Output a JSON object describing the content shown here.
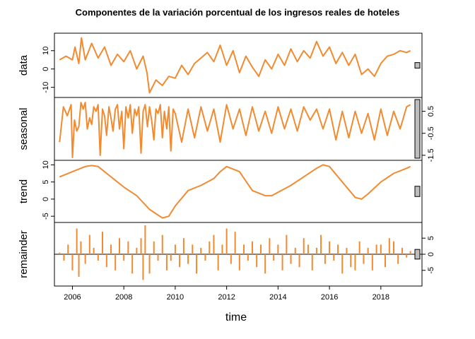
{
  "chart_data": {
    "type": "line",
    "title": "Componentes de la variación porcentual de los ingresos reales de hoteles",
    "xlabel": "time",
    "x_ticks": [
      2006,
      2008,
      2010,
      2012,
      2014,
      2016,
      2018
    ],
    "xlim": [
      2005.3,
      2019.6
    ],
    "grid": false,
    "line_color": "#F28A30",
    "panels": [
      {
        "name": "data",
        "label": "data",
        "ylim": [
          -14,
          18
        ],
        "y_ticks": [
          "-10",
          "0",
          "10"
        ],
        "y_tick_values": [
          -10,
          0,
          10
        ],
        "tick_side": "left",
        "kind": "line",
        "x": [
          2005.5,
          2005.75,
          2006.0,
          2006.1,
          2006.25,
          2006.35,
          2006.5,
          2006.75,
          2007.0,
          2007.25,
          2007.5,
          2007.75,
          2008.0,
          2008.25,
          2008.5,
          2008.75,
          2008.9,
          2009.0,
          2009.25,
          2009.5,
          2009.75,
          2010.0,
          2010.25,
          2010.5,
          2010.75,
          2011.0,
          2011.25,
          2011.5,
          2011.75,
          2012.0,
          2012.25,
          2012.5,
          2012.75,
          2013.0,
          2013.25,
          2013.5,
          2013.75,
          2014.0,
          2014.25,
          2014.5,
          2014.75,
          2015.0,
          2015.25,
          2015.5,
          2015.75,
          2016.0,
          2016.25,
          2016.5,
          2016.75,
          2017.0,
          2017.25,
          2017.5,
          2017.75,
          2018.0,
          2018.25,
          2018.5,
          2018.75,
          2019.0,
          2019.15
        ],
        "y": [
          5,
          7,
          5,
          12,
          3,
          17,
          5,
          14,
          6,
          12,
          2,
          8,
          4,
          10,
          0,
          7,
          -2,
          -13,
          -6,
          -9,
          -4,
          -5,
          2,
          -3,
          3,
          6,
          9,
          4,
          13,
          2,
          10,
          -2,
          7,
          1,
          -4,
          5,
          0,
          8,
          2,
          11,
          4,
          10,
          6,
          15,
          7,
          12,
          3,
          9,
          2,
          8,
          -3,
          0,
          -4,
          3,
          7,
          8,
          10,
          9,
          10
        ]
      },
      {
        "name": "seasonal",
        "label": "seasonal",
        "ylim": [
          -1.6,
          1.0
        ],
        "y_ticks": [
          "0.5",
          "-0.5",
          "-1.5"
        ],
        "y_tick_values": [
          0.5,
          -0.5,
          -1.5
        ],
        "tick_side": "right",
        "kind": "line",
        "x": [
          2005.5,
          2005.65,
          2005.8,
          2005.95,
          2006.0,
          2006.08,
          2006.17,
          2006.25,
          2006.33,
          2006.42,
          2006.5,
          2006.58,
          2006.67,
          2006.75,
          2006.83,
          2006.92,
          2007.0,
          2007.08,
          2007.17,
          2007.25,
          2007.33,
          2007.42,
          2007.5,
          2007.58,
          2007.67,
          2007.75,
          2007.83,
          2007.92,
          2008.0,
          2008.08,
          2008.17,
          2008.25,
          2008.33,
          2008.42,
          2008.5,
          2008.58,
          2008.67,
          2008.75,
          2008.83,
          2008.92,
          2009.0,
          2009.08,
          2009.17,
          2009.25,
          2009.33,
          2009.42,
          2009.5,
          2009.58,
          2009.67,
          2009.75,
          2009.83,
          2009.92,
          2010.0,
          2010.25,
          2010.5,
          2010.75,
          2011.0,
          2011.25,
          2011.5,
          2011.75,
          2012.0,
          2012.25,
          2012.5,
          2012.75,
          2013.0,
          2013.25,
          2013.5,
          2013.75,
          2014.0,
          2014.25,
          2014.5,
          2014.75,
          2015.0,
          2015.25,
          2015.5,
          2015.75,
          2016.0,
          2016.25,
          2016.5,
          2016.75,
          2017.0,
          2017.25,
          2017.5,
          2017.75,
          2018.0,
          2018.25,
          2018.5,
          2018.75,
          2019.0,
          2019.15
        ],
        "y": [
          -0.9,
          0.7,
          0.3,
          0.8,
          -1.6,
          0.1,
          -0.4,
          -0.2,
          0.9,
          0.6,
          0.9,
          -0.3,
          0.2,
          -0.1,
          0.7,
          0.5,
          0.8,
          -1.5,
          0.6,
          0.3,
          -0.6,
          0.7,
          0.2,
          -0.4,
          0.6,
          0.8,
          -0.3,
          0.5,
          -1.2,
          0.7,
          0.2,
          0.8,
          -0.5,
          0.6,
          0.3,
          0.7,
          -1.4,
          0.5,
          0.8,
          -0.2,
          0.7,
          0.1,
          -0.8,
          0.6,
          0.4,
          0.8,
          -0.7,
          0.5,
          -0.3,
          0.7,
          -1.3,
          0.6,
          0.4,
          -0.9,
          0.6,
          -0.7,
          0.7,
          -0.4,
          0.6,
          -0.9,
          0.8,
          -0.3,
          0.6,
          -0.6,
          0.7,
          -0.4,
          0.5,
          -0.5,
          0.7,
          -0.3,
          0.6,
          -0.4,
          0.7,
          0.1,
          0.6,
          -0.3,
          0.6,
          -0.8,
          0.5,
          -0.7,
          0.5,
          -0.5,
          0.4,
          -0.8,
          0.6,
          -0.6,
          0.5,
          -0.3,
          0.7,
          0.8
        ]
      },
      {
        "name": "trend",
        "label": "trend",
        "ylim": [
          -6,
          10.5
        ],
        "y_ticks": [
          "10",
          "5",
          "0",
          "-5"
        ],
        "y_tick_values": [
          10,
          5,
          0,
          -5
        ],
        "tick_side": "left",
        "kind": "line",
        "x": [
          2005.5,
          2006.0,
          2006.5,
          2006.75,
          2007.0,
          2007.5,
          2008.0,
          2008.5,
          2009.0,
          2009.5,
          2009.75,
          2010.0,
          2010.5,
          2011.0,
          2011.5,
          2011.75,
          2012.0,
          2012.5,
          2013.0,
          2013.5,
          2013.75,
          2014.0,
          2014.5,
          2015.0,
          2015.5,
          2015.75,
          2016.0,
          2016.5,
          2017.0,
          2017.25,
          2017.5,
          2018.0,
          2018.5,
          2019.0,
          2019.15
        ],
        "y": [
          6.5,
          8.0,
          9.5,
          9.8,
          9.5,
          6.5,
          3.5,
          1.0,
          -3.0,
          -5.5,
          -5.0,
          -2.0,
          2.5,
          4.0,
          6.0,
          8.0,
          9.5,
          8.0,
          2.5,
          1.0,
          1.0,
          2.0,
          4.0,
          6.5,
          9.0,
          10.0,
          9.5,
          5.0,
          0.5,
          0.0,
          1.5,
          5.0,
          7.5,
          9.0,
          9.5
        ]
      },
      {
        "name": "remainder",
        "label": "remainder",
        "ylim": [
          -9,
          9
        ],
        "y_ticks": [
          "5",
          "0",
          "-5"
        ],
        "y_tick_values": [
          5,
          0,
          -5
        ],
        "tick_side": "right",
        "kind": "bars",
        "baseline": 0,
        "x": [
          2005.5,
          2005.67,
          2005.83,
          2006.0,
          2006.17,
          2006.25,
          2006.33,
          2006.5,
          2006.67,
          2006.83,
          2007.0,
          2007.17,
          2007.33,
          2007.5,
          2007.67,
          2007.83,
          2008.0,
          2008.17,
          2008.33,
          2008.5,
          2008.67,
          2008.75,
          2008.83,
          2009.0,
          2009.17,
          2009.33,
          2009.5,
          2009.67,
          2009.83,
          2010.0,
          2010.17,
          2010.33,
          2010.5,
          2010.67,
          2010.83,
          2011.0,
          2011.17,
          2011.33,
          2011.5,
          2011.67,
          2011.83,
          2012.0,
          2012.17,
          2012.33,
          2012.5,
          2012.67,
          2012.83,
          2013.0,
          2013.17,
          2013.33,
          2013.5,
          2013.67,
          2013.83,
          2014.0,
          2014.17,
          2014.33,
          2014.5,
          2014.67,
          2014.83,
          2015.0,
          2015.17,
          2015.33,
          2015.5,
          2015.67,
          2015.83,
          2016.0,
          2016.17,
          2016.33,
          2016.5,
          2016.67,
          2016.83,
          2017.0,
          2017.17,
          2017.33,
          2017.5,
          2017.67,
          2017.83,
          2018.0,
          2018.17,
          2018.33,
          2018.5,
          2018.67,
          2018.83,
          2019.0,
          2019.15
        ],
        "y": [
          0.5,
          -2,
          3,
          -5,
          8,
          -7,
          4,
          -3,
          6,
          2,
          -2,
          7,
          -4,
          3,
          -5,
          5,
          -2,
          4,
          -6,
          2,
          5,
          -8,
          9,
          -6,
          4,
          -2,
          6,
          -5,
          -2,
          3,
          -4,
          5,
          -3,
          3,
          -6,
          2,
          -2,
          4,
          6,
          -5,
          3,
          8,
          -3,
          7,
          -5,
          3,
          -2,
          4,
          -4,
          3,
          -6,
          5,
          -2,
          3,
          -5,
          6,
          -3,
          2,
          -4,
          5,
          3,
          -5,
          2,
          6,
          -3,
          4,
          -2,
          3,
          -6,
          2,
          -4,
          -5,
          4,
          -3,
          2,
          -5,
          3,
          3,
          -4,
          5,
          4,
          -3,
          2,
          -1,
          1
        ]
      }
    ]
  }
}
